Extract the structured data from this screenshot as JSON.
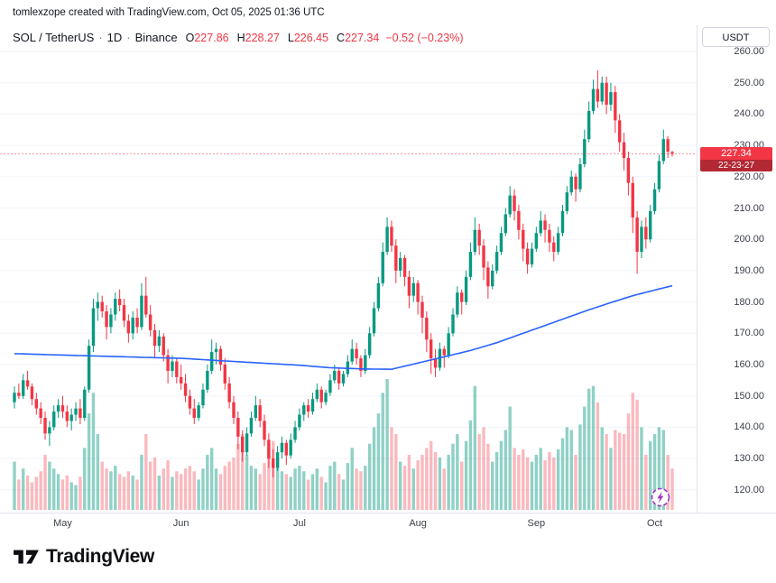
{
  "attribution": "tomlexzope created with TradingView.com, Oct 05, 2025 01:36 UTC",
  "legend": {
    "symbol": "SOL / TetherUS",
    "separator": "·",
    "interval": "1D",
    "exchange": "Binance",
    "o_label": "O",
    "o": "227.86",
    "h_label": "H",
    "h": "228.27",
    "l_label": "L",
    "l": "226.45",
    "c_label": "C",
    "c": "227.34",
    "change": "−0.52 (−0.23%)"
  },
  "axis": {
    "currency": "USDT"
  },
  "footer": {
    "logo_text": "TradingView"
  },
  "chart_data": {
    "type": "candlestick",
    "title": "SOL / TetherUS · 1D · Binance",
    "ylim": [
      115,
      263
    ],
    "last_price": 227.34,
    "last_price_label": "227.34",
    "countdown": "22-23-27",
    "volume_max": 95,
    "price_axis": {
      "ticks": [
        260,
        250,
        240,
        230,
        220,
        210,
        200,
        190,
        180,
        170,
        160,
        150,
        140,
        130,
        120
      ]
    },
    "time_axis": {
      "months": [
        {
          "label": "May",
          "i": 11
        },
        {
          "label": "Jun",
          "i": 38
        },
        {
          "label": "Jul",
          "i": 65
        },
        {
          "label": "Aug",
          "i": 92
        },
        {
          "label": "Sep",
          "i": 119
        },
        {
          "label": "Oct",
          "i": 146
        }
      ]
    },
    "ma_points": [
      [
        0,
        163.5
      ],
      [
        12,
        163
      ],
      [
        25,
        162.5
      ],
      [
        38,
        162
      ],
      [
        50,
        161
      ],
      [
        60,
        160.2
      ],
      [
        65,
        159.8
      ],
      [
        72,
        159
      ],
      [
        80,
        158.6
      ],
      [
        86,
        158.5
      ],
      [
        92,
        160.5
      ],
      [
        98,
        162.5
      ],
      [
        104,
        164.5
      ],
      [
        110,
        167
      ],
      [
        116,
        170
      ],
      [
        121,
        172.5
      ],
      [
        126,
        175
      ],
      [
        131,
        177.5
      ],
      [
        136,
        179.8
      ],
      [
        141,
        182
      ],
      [
        146,
        183.8
      ],
      [
        150,
        185.2
      ]
    ],
    "candles": [
      [
        148,
        153,
        146,
        151,
        35
      ],
      [
        151,
        154,
        149,
        150,
        22
      ],
      [
        150,
        157,
        149,
        155,
        30
      ],
      [
        155,
        158,
        152,
        153,
        25
      ],
      [
        153,
        154,
        147,
        149,
        20
      ],
      [
        149,
        151,
        144,
        146,
        24
      ],
      [
        146,
        148,
        141,
        143,
        28
      ],
      [
        143,
        145,
        136,
        138,
        40
      ],
      [
        138,
        142,
        134,
        140,
        35
      ],
      [
        140,
        147,
        139,
        145,
        30
      ],
      [
        145,
        149,
        143,
        147,
        26
      ],
      [
        147,
        150,
        143,
        145,
        22
      ],
      [
        145,
        147,
        140,
        142,
        25
      ],
      [
        142,
        146,
        139,
        144,
        20
      ],
      [
        144,
        148,
        142,
        146,
        18
      ],
      [
        146,
        149,
        141,
        143,
        24
      ],
      [
        143,
        153,
        142,
        152,
        45
      ],
      [
        152,
        168,
        151,
        166,
        70
      ],
      [
        166,
        181,
        164,
        178,
        85
      ],
      [
        178,
        183,
        174,
        180,
        55
      ],
      [
        180,
        182,
        175,
        177,
        35
      ],
      [
        177,
        179,
        168,
        172,
        30
      ],
      [
        172,
        178,
        170,
        176,
        28
      ],
      [
        176,
        183,
        174,
        181,
        32
      ],
      [
        181,
        184,
        177,
        179,
        26
      ],
      [
        179,
        181,
        172,
        174,
        24
      ],
      [
        174,
        176,
        167,
        170,
        28
      ],
      [
        170,
        177,
        168,
        175,
        25
      ],
      [
        175,
        178,
        170,
        172,
        22
      ],
      [
        172,
        186,
        171,
        182,
        40
      ],
      [
        182,
        188,
        175,
        176,
        55
      ],
      [
        176,
        179,
        169,
        171,
        35
      ],
      [
        171,
        173,
        162,
        166,
        38
      ],
      [
        166,
        171,
        164,
        169,
        25
      ],
      [
        169,
        170,
        161,
        163,
        30
      ],
      [
        163,
        165,
        154,
        158,
        36
      ],
      [
        158,
        163,
        156,
        161,
        24
      ],
      [
        161,
        162,
        154,
        156,
        28
      ],
      [
        156,
        160,
        152,
        154,
        26
      ],
      [
        154,
        157,
        148,
        150,
        30
      ],
      [
        150,
        152,
        144,
        146,
        32
      ],
      [
        146,
        149,
        141,
        143,
        28
      ],
      [
        143,
        148,
        142,
        147,
        22
      ],
      [
        147,
        154,
        146,
        152,
        30
      ],
      [
        152,
        160,
        151,
        158,
        40
      ],
      [
        158,
        168,
        157,
        164,
        45
      ],
      [
        164,
        167,
        160,
        165,
        30
      ],
      [
        165,
        166,
        158,
        160,
        26
      ],
      [
        160,
        162,
        152,
        154,
        32
      ],
      [
        154,
        156,
        146,
        148,
        35
      ],
      [
        148,
        150,
        141,
        143,
        38
      ],
      [
        143,
        145,
        133,
        137,
        48
      ],
      [
        137,
        139,
        129,
        132,
        55
      ],
      [
        132,
        140,
        131,
        138,
        40
      ],
      [
        138,
        145,
        137,
        143,
        32
      ],
      [
        143,
        150,
        142,
        147,
        30
      ],
      [
        147,
        149,
        140,
        142,
        26
      ],
      [
        142,
        144,
        134,
        136,
        34
      ],
      [
        136,
        138,
        127,
        130,
        45
      ],
      [
        130,
        133,
        124,
        127,
        50
      ],
      [
        127,
        134,
        126,
        132,
        38
      ],
      [
        132,
        137,
        130,
        135,
        28
      ],
      [
        135,
        136,
        128,
        131,
        26
      ],
      [
        131,
        138,
        130,
        136,
        24
      ],
      [
        136,
        142,
        135,
        140,
        30
      ],
      [
        140,
        146,
        139,
        144,
        32
      ],
      [
        144,
        148,
        142,
        147,
        28
      ],
      [
        147,
        149,
        143,
        145,
        22
      ],
      [
        145,
        151,
        144,
        149,
        26
      ],
      [
        149,
        154,
        148,
        152,
        30
      ],
      [
        152,
        153,
        146,
        148,
        24
      ],
      [
        148,
        152,
        147,
        151,
        20
      ],
      [
        151,
        157,
        150,
        155,
        32
      ],
      [
        155,
        160,
        154,
        158,
        35
      ],
      [
        158,
        159,
        152,
        154,
        26
      ],
      [
        154,
        158,
        153,
        157,
        22
      ],
      [
        157,
        163,
        156,
        161,
        34
      ],
      [
        161,
        168,
        160,
        165,
        45
      ],
      [
        165,
        167,
        160,
        162,
        30
      ],
      [
        162,
        163,
        156,
        158,
        28
      ],
      [
        158,
        165,
        157,
        163,
        32
      ],
      [
        163,
        172,
        162,
        170,
        48
      ],
      [
        170,
        180,
        169,
        178,
        60
      ],
      [
        178,
        188,
        177,
        186,
        70
      ],
      [
        186,
        199,
        185,
        196,
        85
      ],
      [
        196,
        207,
        195,
        204,
        95
      ],
      [
        204,
        206,
        196,
        198,
        60
      ],
      [
        198,
        200,
        186,
        190,
        55
      ],
      [
        190,
        196,
        188,
        194,
        35
      ],
      [
        194,
        195,
        185,
        188,
        32
      ],
      [
        188,
        190,
        178,
        182,
        40
      ],
      [
        182,
        188,
        180,
        186,
        30
      ],
      [
        186,
        187,
        176,
        180,
        36
      ],
      [
        180,
        182,
        170,
        175,
        40
      ],
      [
        175,
        177,
        164,
        168,
        45
      ],
      [
        168,
        170,
        157,
        162,
        50
      ],
      [
        162,
        165,
        156,
        159,
        42
      ],
      [
        159,
        167,
        158,
        165,
        38
      ],
      [
        165,
        166,
        159,
        163,
        30
      ],
      [
        163,
        172,
        162,
        170,
        40
      ],
      [
        170,
        178,
        169,
        176,
        48
      ],
      [
        176,
        185,
        175,
        183,
        55
      ],
      [
        183,
        184,
        176,
        180,
        35
      ],
      [
        180,
        190,
        179,
        188,
        50
      ],
      [
        188,
        199,
        187,
        196,
        65
      ],
      [
        196,
        207,
        195,
        203,
        90
      ],
      [
        203,
        205,
        195,
        198,
        55
      ],
      [
        198,
        200,
        187,
        191,
        60
      ],
      [
        191,
        193,
        181,
        185,
        48
      ],
      [
        185,
        192,
        184,
        190,
        35
      ],
      [
        190,
        198,
        189,
        196,
        42
      ],
      [
        196,
        204,
        195,
        202,
        50
      ],
      [
        202,
        210,
        201,
        208,
        58
      ],
      [
        208,
        217,
        207,
        214,
        75
      ],
      [
        214,
        216,
        206,
        209,
        45
      ],
      [
        209,
        211,
        200,
        203,
        40
      ],
      [
        203,
        205,
        193,
        197,
        44
      ],
      [
        197,
        199,
        189,
        192,
        38
      ],
      [
        192,
        199,
        191,
        197,
        35
      ],
      [
        197,
        204,
        196,
        202,
        40
      ],
      [
        202,
        209,
        201,
        206,
        45
      ],
      [
        206,
        208,
        199,
        203,
        36
      ],
      [
        203,
        205,
        196,
        199,
        42
      ],
      [
        199,
        201,
        193,
        196,
        38
      ],
      [
        196,
        204,
        195,
        202,
        44
      ],
      [
        202,
        211,
        201,
        209,
        52
      ],
      [
        209,
        217,
        208,
        215,
        60
      ],
      [
        215,
        222,
        214,
        220,
        58
      ],
      [
        220,
        221,
        212,
        216,
        40
      ],
      [
        216,
        226,
        215,
        224,
        62
      ],
      [
        224,
        235,
        223,
        232,
        75
      ],
      [
        232,
        244,
        231,
        241,
        88
      ],
      [
        241,
        251,
        240,
        248,
        90
      ],
      [
        248,
        254,
        242,
        244,
        78
      ],
      [
        244,
        252,
        243,
        250,
        60
      ],
      [
        250,
        252,
        240,
        243,
        55
      ],
      [
        243,
        250,
        241,
        247,
        45
      ],
      [
        247,
        249,
        234,
        238,
        58
      ],
      [
        238,
        240,
        228,
        231,
        56
      ],
      [
        231,
        234,
        222,
        226,
        55
      ],
      [
        226,
        228,
        214,
        218,
        70
      ],
      [
        218,
        220,
        202,
        207,
        85
      ],
      [
        207,
        209,
        189,
        196,
        80
      ],
      [
        196,
        206,
        194,
        204,
        60
      ],
      [
        204,
        207,
        197,
        200,
        40
      ],
      [
        200,
        211,
        199,
        209,
        50
      ],
      [
        209,
        218,
        208,
        216,
        55
      ],
      [
        216,
        227,
        215,
        225,
        60
      ],
      [
        225,
        235,
        224,
        232,
        58
      ],
      [
        232,
        233,
        226,
        228,
        40
      ],
      [
        227.86,
        228.27,
        226.45,
        227.34,
        30
      ]
    ],
    "colors": {
      "up": "#089981",
      "down": "#f23645",
      "vol_up": "rgba(8,153,129,0.45)",
      "vol_down": "rgba(242,54,69,0.35)",
      "ma": "#2962ff",
      "tag_bg": "#f23645",
      "countdown_bg": "#b22833",
      "boost": "#a132c4"
    }
  }
}
